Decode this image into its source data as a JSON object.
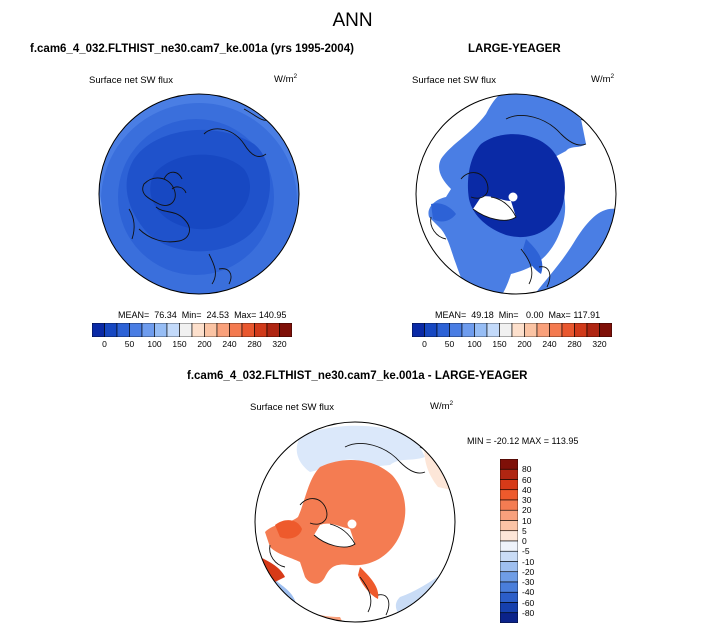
{
  "header": {
    "title": "ANN"
  },
  "panels": {
    "model": {
      "case_title": "f.cam6_4_032.FLTHIST_ne30.cam7_ke.001a (yrs 1995-2004)",
      "variable": "Surface net SW flux",
      "units_base": "W/m",
      "units_exp": "2",
      "stats_text": "MEAN=  76.34  Min=  24.53  Max= 140.95"
    },
    "obs": {
      "case_title": "LARGE-YEAGER",
      "variable": "Surface net SW flux",
      "units_base": "W/m",
      "units_exp": "2",
      "stats_text": "MEAN=  49.18  Min=   0.00  Max= 117.91"
    },
    "diff": {
      "case_title": "f.cam6_4_032.FLTHIST_ne30.cam7_ke.001a - LARGE-YEAGER",
      "variable": "Surface net SW flux",
      "units_base": "W/m",
      "units_exp": "2",
      "stats_text": "MIN = -20.12 MAX = 113.95"
    }
  },
  "chart_data": [
    {
      "type": "heatmap",
      "projection": "north-polar-stereographic",
      "title": "f.cam6_4_032.FLTHIST_ne30.cam7_ke.001a (yrs 1995-2004)",
      "field": "Surface net SW flux",
      "units": "W/m2",
      "stats": {
        "mean": 76.34,
        "min": 24.53,
        "max": 140.95
      },
      "colorbar": {
        "orientation": "horizontal",
        "levels": [
          0,
          25,
          50,
          75,
          100,
          125,
          150,
          175,
          200,
          220,
          240,
          260,
          280,
          300,
          320
        ],
        "tick_labels": [
          "0",
          "50",
          "100",
          "150",
          "200",
          "240",
          "280",
          "320"
        ],
        "colors": [
          "#0a2aa6",
          "#1748c2",
          "#2d62d6",
          "#4a7ee4",
          "#6e9cee",
          "#96bdf5",
          "#c3dafa",
          "#f1f1f1",
          "#fde0cc",
          "#fbc4a4",
          "#f9a07a",
          "#f47a4f",
          "#e9572e",
          "#d13a1a",
          "#b02612",
          "#7f1008"
        ]
      }
    },
    {
      "type": "heatmap",
      "projection": "north-polar-stereographic",
      "title": "LARGE-YEAGER",
      "field": "Surface net SW flux",
      "units": "W/m2",
      "stats": {
        "mean": 49.18,
        "min": 0.0,
        "max": 117.91
      },
      "colorbar": {
        "orientation": "horizontal",
        "levels": [
          0,
          25,
          50,
          75,
          100,
          125,
          150,
          175,
          200,
          220,
          240,
          260,
          280,
          300,
          320
        ],
        "tick_labels": [
          "0",
          "50",
          "100",
          "150",
          "200",
          "240",
          "280",
          "320"
        ],
        "colors": [
          "#0a2aa6",
          "#1748c2",
          "#2d62d6",
          "#4a7ee4",
          "#6e9cee",
          "#96bdf5",
          "#c3dafa",
          "#f1f1f1",
          "#fde0cc",
          "#fbc4a4",
          "#f9a07a",
          "#f47a4f",
          "#e9572e",
          "#d13a1a",
          "#b02612",
          "#7f1008"
        ]
      }
    },
    {
      "type": "heatmap",
      "projection": "north-polar-stereographic",
      "title": "f.cam6_4_032.FLTHIST_ne30.cam7_ke.001a - LARGE-YEAGER",
      "field": "Surface net SW flux",
      "units": "W/m2",
      "stats": {
        "min": -20.12,
        "max": 113.95
      },
      "colorbar": {
        "orientation": "vertical",
        "levels": [
          -80,
          -60,
          -40,
          -30,
          -20,
          -10,
          -5,
          0,
          5,
          10,
          20,
          30,
          40,
          60,
          80
        ],
        "tick_labels": [
          "80",
          "60",
          "40",
          "30",
          "20",
          "10",
          "5",
          "0",
          "-5",
          "-10",
          "-20",
          "-30",
          "-40",
          "-60",
          "-80"
        ],
        "colors": [
          "#7f1008",
          "#b02612",
          "#d73a18",
          "#ee5a2c",
          "#f47c52",
          "#f8a07c",
          "#fbc4a6",
          "#fde6d8",
          "#eef3fb",
          "#c9dcf6",
          "#9ebff0",
          "#6f9de6",
          "#4a7edb",
          "#2c5ec8",
          "#1640ad",
          "#0b238a"
        ]
      }
    }
  ]
}
